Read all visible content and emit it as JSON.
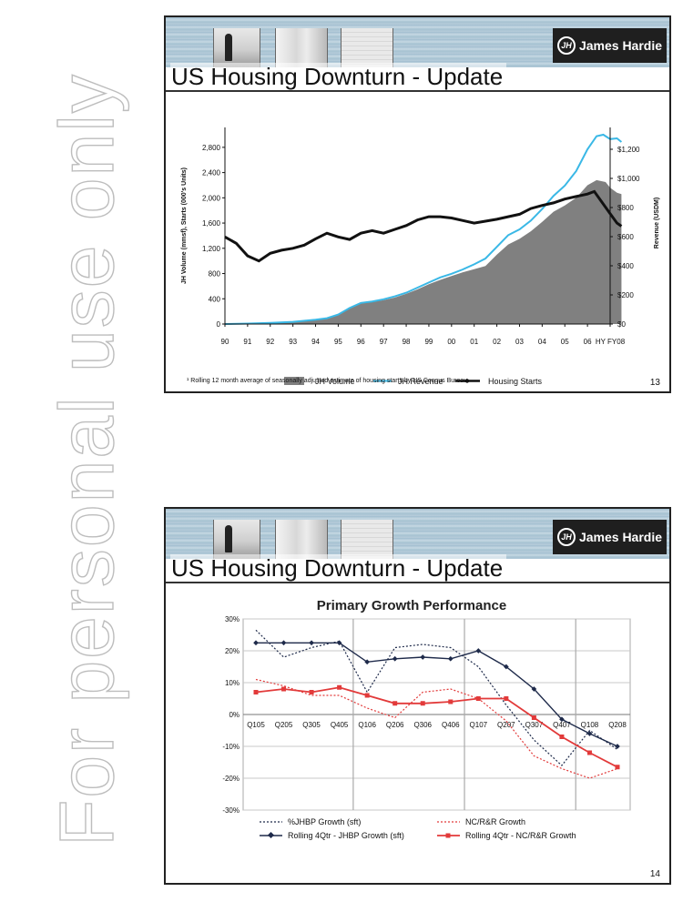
{
  "watermark": "For personal use only",
  "slides": [
    {
      "title": "US Housing Downturn - Update",
      "logo_text": "James Hardie",
      "logo_mark": "JH",
      "page_number": "13",
      "footnote": "¹ Rolling 12 month average of seasonally adjusted estimate of housing starts by US Census Bureau."
    },
    {
      "title": "US Housing Downturn - Update",
      "logo_text": "James Hardie",
      "logo_mark": "JH",
      "page_number": "14"
    }
  ],
  "chart_data": [
    {
      "type": "area",
      "title": "",
      "ylabel": "JH Volume (mmsf), Starts (000's Units)",
      "y2label": "Revenue (USDM)",
      "ylim": [
        0,
        3000
      ],
      "y2lim": [
        0,
        1300
      ],
      "yticks": [
        "0",
        "400",
        "800",
        "1,200",
        "1,600",
        "2,000",
        "2,400",
        "2,800"
      ],
      "y2ticks": [
        "$0",
        "$200",
        "$400",
        "$600",
        "$800",
        "$1,000",
        "$1,200"
      ],
      "categories": [
        "90",
        "91",
        "92",
        "93",
        "94",
        "95",
        "96",
        "97",
        "98",
        "99",
        "00",
        "01",
        "02",
        "03",
        "04",
        "05",
        "06",
        "HY FY08"
      ],
      "legend_position": "bottom",
      "series": [
        {
          "name": "JH Volume",
          "kind": "area",
          "axis": "left",
          "color": "#808080",
          "points": [
            [
              0,
              0
            ],
            [
              1,
              5
            ],
            [
              2,
              15
            ],
            [
              3,
              30
            ],
            [
              4,
              60
            ],
            [
              4.5,
              90
            ],
            [
              5,
              150
            ],
            [
              5.5,
              250
            ],
            [
              6,
              330
            ],
            [
              6.5,
              350
            ],
            [
              7,
              380
            ],
            [
              7.5,
              420
            ],
            [
              8,
              480
            ],
            [
              8.5,
              550
            ],
            [
              9,
              630
            ],
            [
              9.5,
              700
            ],
            [
              10,
              760
            ],
            [
              10.5,
              820
            ],
            [
              11,
              870
            ],
            [
              11.5,
              920
            ],
            [
              12,
              1100
            ],
            [
              12.5,
              1260
            ],
            [
              13,
              1350
            ],
            [
              13.5,
              1470
            ],
            [
              14,
              1620
            ],
            [
              14.5,
              1780
            ],
            [
              15,
              1880
            ],
            [
              15.5,
              2000
            ],
            [
              16,
              2200
            ],
            [
              16.4,
              2280
            ],
            [
              16.8,
              2250
            ],
            [
              17,
              2160
            ],
            [
              17.3,
              2080
            ],
            [
              17.5,
              2060
            ]
          ]
        },
        {
          "name": "JH Revenue",
          "kind": "line",
          "axis": "right",
          "color": "#3ab8e6",
          "points": [
            [
              0,
              0
            ],
            [
              1,
              3
            ],
            [
              2,
              8
            ],
            [
              3,
              15
            ],
            [
              4,
              30
            ],
            [
              4.5,
              40
            ],
            [
              5,
              65
            ],
            [
              5.5,
              110
            ],
            [
              6,
              145
            ],
            [
              6.5,
              155
            ],
            [
              7,
              170
            ],
            [
              7.5,
              190
            ],
            [
              8,
              215
            ],
            [
              8.5,
              250
            ],
            [
              9,
              285
            ],
            [
              9.5,
              320
            ],
            [
              10,
              345
            ],
            [
              10.5,
              375
            ],
            [
              11,
              410
            ],
            [
              11.5,
              450
            ],
            [
              12,
              530
            ],
            [
              12.5,
              610
            ],
            [
              13,
              650
            ],
            [
              13.5,
              710
            ],
            [
              14,
              790
            ],
            [
              14.5,
              880
            ],
            [
              15,
              950
            ],
            [
              15.5,
              1050
            ],
            [
              16,
              1200
            ],
            [
              16.4,
              1290
            ],
            [
              16.7,
              1300
            ],
            [
              17,
              1270
            ],
            [
              17.3,
              1275
            ],
            [
              17.5,
              1250
            ]
          ]
        },
        {
          "name": "Housing Starts",
          "kind": "line",
          "axis": "left",
          "color": "#111111",
          "points": [
            [
              0,
              1380
            ],
            [
              0.5,
              1280
            ],
            [
              1,
              1080
            ],
            [
              1.5,
              1000
            ],
            [
              2,
              1120
            ],
            [
              2.5,
              1170
            ],
            [
              3,
              1200
            ],
            [
              3.5,
              1250
            ],
            [
              4,
              1350
            ],
            [
              4.5,
              1440
            ],
            [
              5,
              1380
            ],
            [
              5.5,
              1340
            ],
            [
              6,
              1440
            ],
            [
              6.5,
              1480
            ],
            [
              7,
              1440
            ],
            [
              7.5,
              1500
            ],
            [
              8,
              1560
            ],
            [
              8.5,
              1650
            ],
            [
              9,
              1700
            ],
            [
              9.5,
              1700
            ],
            [
              10,
              1680
            ],
            [
              10.5,
              1640
            ],
            [
              11,
              1600
            ],
            [
              11.5,
              1630
            ],
            [
              12,
              1660
            ],
            [
              12.5,
              1700
            ],
            [
              13,
              1740
            ],
            [
              13.5,
              1830
            ],
            [
              14,
              1880
            ],
            [
              14.5,
              1920
            ],
            [
              15,
              1980
            ],
            [
              15.5,
              2020
            ],
            [
              16,
              2060
            ],
            [
              16.3,
              2100
            ],
            [
              16.6,
              1950
            ],
            [
              17,
              1750
            ],
            [
              17.3,
              1600
            ],
            [
              17.5,
              1550
            ]
          ]
        }
      ]
    },
    {
      "type": "line",
      "title": "Primary Growth Performance",
      "categories": [
        "Q105",
        "Q205",
        "Q305",
        "Q405",
        "Q106",
        "Q206",
        "Q306",
        "Q406",
        "Q107",
        "Q207",
        "Q307",
        "Q407",
        "Q108",
        "Q208"
      ],
      "ylim": [
        -30,
        30
      ],
      "yticks": [
        "-30%",
        "-20%",
        "-10%",
        "0%",
        "10%",
        "20%",
        "30%"
      ],
      "grid": true,
      "legend_position": "bottom",
      "series": [
        {
          "name": "%JHBP Growth (sft)",
          "style": "dotted",
          "color": "#1e2a4a",
          "values": [
            26.5,
            18,
            21,
            23,
            7,
            21,
            22,
            21,
            15,
            3,
            -8,
            -16,
            -5,
            -11
          ]
        },
        {
          "name": "NC/R&R Growth",
          "style": "dotted",
          "color": "#e23a3a",
          "values": [
            11,
            9,
            6,
            6,
            2,
            -1,
            7,
            8,
            5,
            -2,
            -13,
            -17,
            -20,
            -17
          ]
        },
        {
          "name": "Rolling 4Qtr - JHBP Growth (sft)",
          "style": "solid-diamond",
          "color": "#1e2a4a",
          "values": [
            22.5,
            22.5,
            22.5,
            22.5,
            16.5,
            17.5,
            18,
            17.5,
            20,
            15,
            8,
            -1.5,
            -6,
            -10
          ]
        },
        {
          "name": "Rolling 4Qtr - NC/R&R Growth",
          "style": "solid-square",
          "color": "#e23a3a",
          "values": [
            7,
            8,
            7,
            8.5,
            6,
            3.5,
            3.5,
            4,
            5,
            5,
            -1,
            -7,
            -12,
            -16.5
          ]
        }
      ]
    }
  ]
}
